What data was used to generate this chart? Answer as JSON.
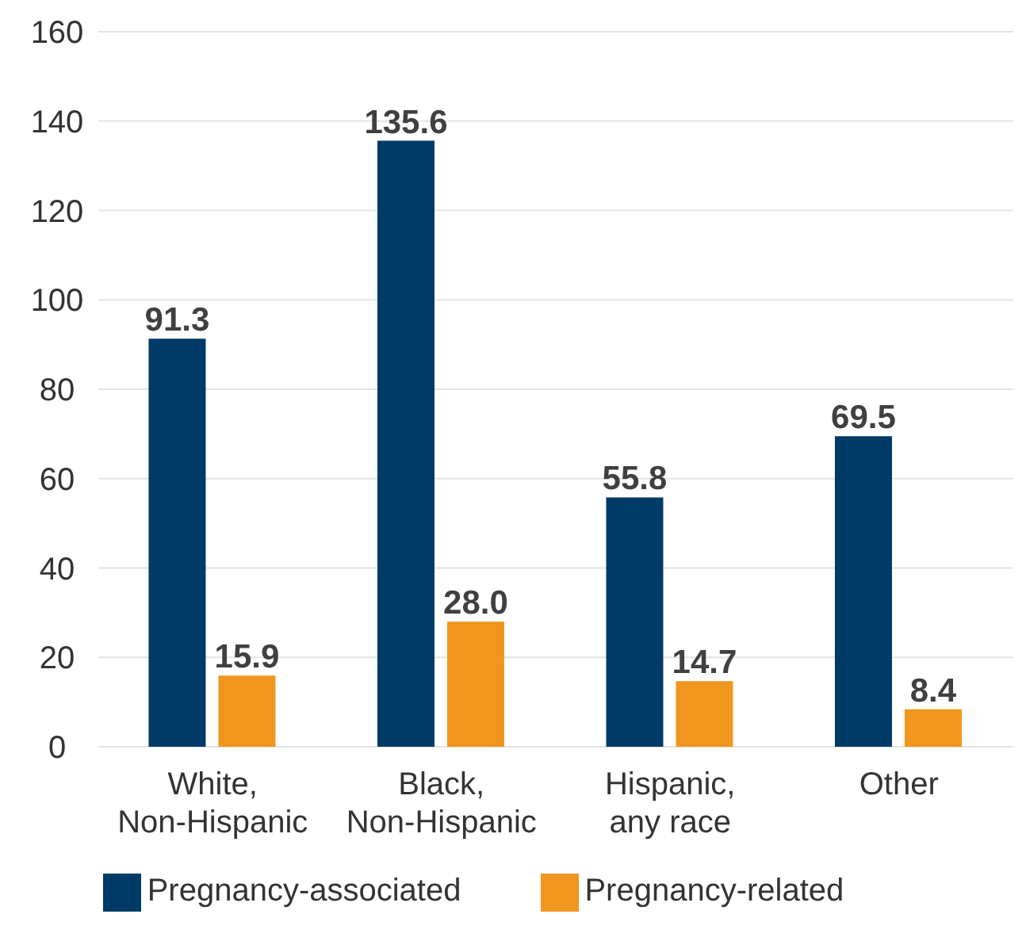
{
  "chart_data": {
    "type": "bar",
    "categories": [
      "White, Non-Hispanic",
      "Black, Non-Hispanic",
      "Hispanic, any race",
      "Other"
    ],
    "series": [
      {
        "name": "Pregnancy-associated",
        "color": "#003a66",
        "values": [
          91.3,
          135.6,
          55.8,
          69.5
        ],
        "value_labels": [
          "91.3",
          "135.6",
          "55.8",
          "69.5"
        ]
      },
      {
        "name": "Pregnancy-related",
        "color": "#f0961e",
        "values": [
          15.9,
          28.0,
          14.7,
          8.4
        ],
        "value_labels": [
          "15.9",
          "28.0",
          "14.7",
          "8.4"
        ]
      }
    ],
    "ylim": [
      0,
      160
    ],
    "yticks": [
      0,
      20,
      40,
      60,
      80,
      100,
      120,
      140,
      160
    ],
    "grid": "y",
    "legend": "bottom"
  }
}
